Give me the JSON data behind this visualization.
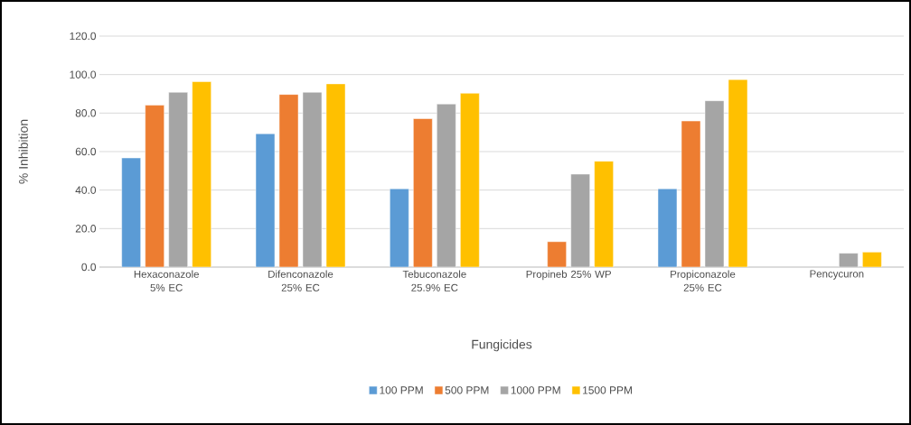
{
  "chart_data": {
    "type": "bar",
    "xlabel": "Fungicides",
    "ylabel": "% Inhibition",
    "categories": [
      "Hexaconazole 5% EC",
      "Difenconazole 25% EC",
      "Tebuconazole 25.9% EC",
      "Propineb 25% WP",
      "Propiconazole 25% EC",
      "Pencycuron"
    ],
    "series": [
      {
        "name": "100 PPM",
        "color": "#5b9bd5",
        "values": [
          56.7,
          69.3,
          40.7,
          null,
          40.7,
          null
        ]
      },
      {
        "name": "500 PPM",
        "color": "#ed7d31",
        "values": [
          84.1,
          89.7,
          77.1,
          13.2,
          75.9,
          null
        ]
      },
      {
        "name": "1000 PPM",
        "color": "#a5a5a5",
        "values": [
          90.8,
          90.8,
          84.7,
          48.3,
          86.4,
          7.2
        ]
      },
      {
        "name": "1500 PPM",
        "color": "#ffc000",
        "values": [
          96.3,
          95.2,
          90.3,
          55.0,
          97.4,
          7.8
        ]
      }
    ],
    "ylim": [
      0,
      120
    ],
    "yticks": [
      {
        "value": 0,
        "label": "0.0"
      },
      {
        "value": 20,
        "label": "20.0"
      },
      {
        "value": 40,
        "label": "40.0"
      },
      {
        "value": 60,
        "label": "60.0"
      },
      {
        "value": 80,
        "label": "80.0"
      },
      {
        "value": 100,
        "label": "100.0"
      },
      {
        "value": 120,
        "label": "120.0"
      }
    ],
    "grid": "y",
    "legend": "bottom"
  }
}
